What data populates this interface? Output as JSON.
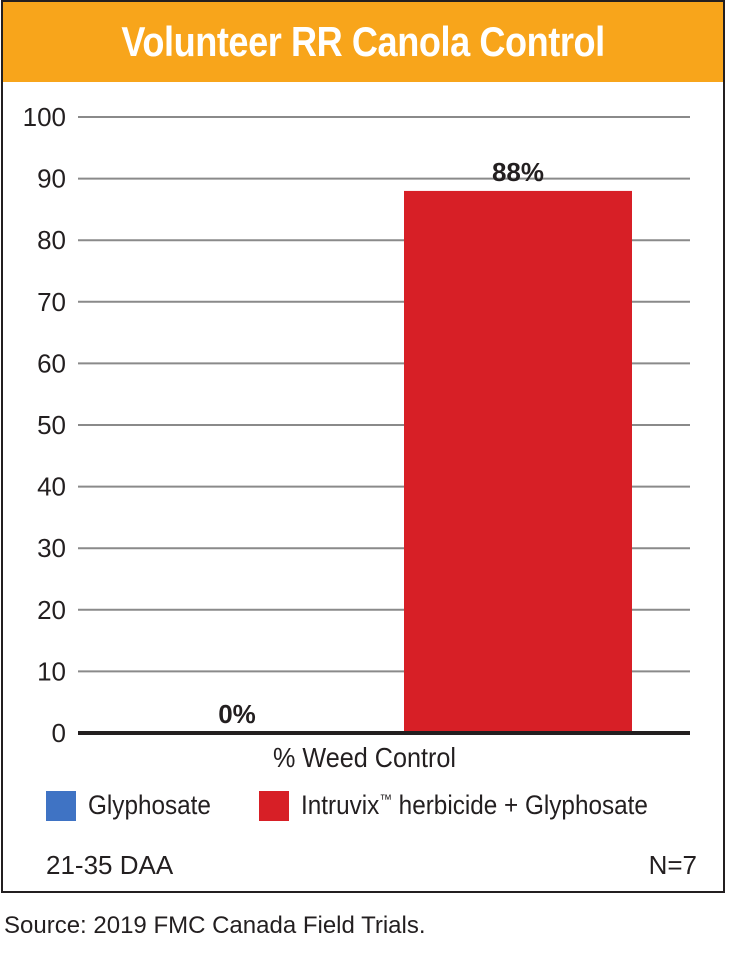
{
  "chart_data": {
    "type": "bar",
    "title": "Volunteer RR Canola Control",
    "xlabel": "% Weed Control",
    "ylabel": "",
    "ylim": [
      0,
      100
    ],
    "yticks": [
      0,
      10,
      20,
      30,
      40,
      50,
      60,
      70,
      80,
      90,
      100
    ],
    "categories": [
      "% Weed Control"
    ],
    "series": [
      {
        "name": "Glyphosate",
        "values": [
          0
        ],
        "label": "0%",
        "color": "#3f73c4"
      },
      {
        "name": "Intruvix™ herbicide + Glyphosate",
        "values": [
          88
        ],
        "label": "88%",
        "color": "#d71f26"
      }
    ],
    "grid": true,
    "legend_position": "bottom",
    "legend": [
      {
        "name_main": "Intruvix",
        "name_tm": "™",
        "name_rest": " herbicide + Glyphosate"
      }
    ]
  },
  "footer": {
    "left": "21-35 DAA",
    "right": "N=7"
  },
  "source": "Source: 2019 FMC Canada Field Trials.",
  "colors": {
    "title_bar": "#f8a51b",
    "title_text": "#ffffff",
    "grid": "#8a8a8a",
    "axis": "#231f20"
  }
}
